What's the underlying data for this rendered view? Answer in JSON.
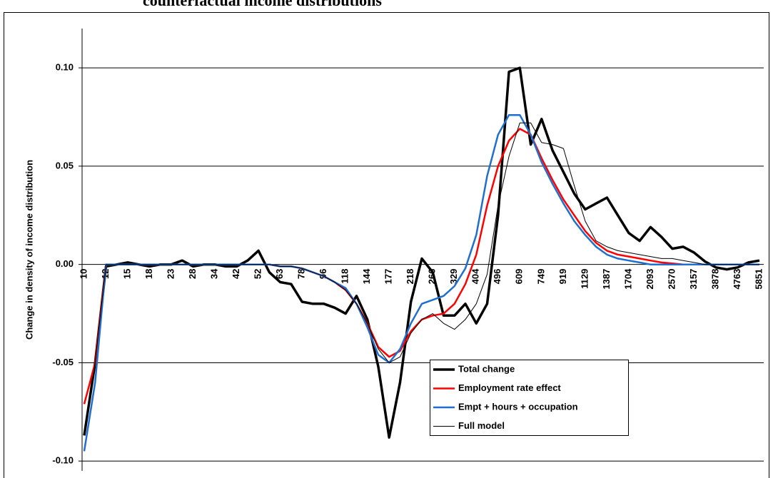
{
  "chart_data": {
    "type": "line",
    "title": "counterfactual income distributions",
    "y_label": "Change in density of income distribution",
    "categories": [
      "10",
      null,
      "12",
      null,
      "15",
      null,
      "18",
      null,
      "23",
      null,
      "28",
      null,
      "34",
      null,
      "42",
      null,
      "52",
      null,
      "63",
      null,
      "78",
      null,
      "96",
      null,
      "118",
      null,
      "144",
      null,
      "177",
      null,
      "218",
      null,
      "266",
      null,
      "329",
      null,
      "404",
      null,
      "496",
      null,
      "609",
      null,
      "749",
      null,
      "919",
      null,
      "1129",
      null,
      "1387",
      null,
      "1704",
      null,
      "2093",
      null,
      "2570",
      null,
      "3157",
      null,
      "3878",
      null,
      "4763",
      null,
      "5851"
    ],
    "series": [
      {
        "name": "Total change",
        "color": "#000000",
        "values": [
          -0.087,
          -0.05,
          -0.001,
          0,
          0.001,
          0,
          -0.001,
          0,
          0,
          0.002,
          -0.001,
          0,
          0,
          -0.001,
          -0.001,
          0.002,
          0.007,
          -0.004,
          -0.009,
          -0.01,
          -0.019,
          -0.02,
          -0.02,
          -0.022,
          -0.025,
          -0.016,
          -0.028,
          -0.052,
          -0.088,
          -0.06,
          -0.019,
          0.003,
          -0.004,
          -0.026,
          -0.026,
          -0.02,
          -0.03,
          -0.02,
          0.025,
          0.098,
          0.1,
          0.061,
          0.074,
          0.058,
          0.047,
          0.036,
          0.028,
          0.031,
          0.034,
          0.025,
          0.016,
          0.012,
          0.019,
          0.014,
          0.008,
          0.009,
          0.006,
          0.0015,
          -0.0015,
          -0.0025,
          -0.0015,
          0.001,
          0.002
        ]
      },
      {
        "name": "Employment rate effect",
        "color": "#ff0000",
        "values": [
          -0.071,
          -0.05,
          0,
          0,
          0,
          0,
          0,
          0,
          0,
          0,
          0,
          0,
          0,
          0,
          0,
          0,
          0,
          0,
          -0.001,
          -0.001,
          -0.002,
          -0.004,
          -0.006,
          -0.009,
          -0.013,
          -0.02,
          -0.03,
          -0.042,
          -0.047,
          -0.044,
          -0.034,
          -0.028,
          -0.026,
          -0.025,
          -0.02,
          -0.01,
          0.005,
          0.03,
          0.05,
          0.063,
          0.069,
          0.066,
          0.054,
          0.043,
          0.033,
          0.025,
          0.017,
          0.011,
          0.007,
          0.005,
          0.004,
          0.003,
          0.002,
          0.001,
          0.0005,
          0,
          0,
          0,
          0,
          0,
          0,
          0,
          0
        ]
      },
      {
        "name": "Empt + hours + occupation",
        "color": "#1f6fd0",
        "values": [
          -0.095,
          -0.06,
          0,
          0,
          0,
          0,
          0,
          0,
          0,
          0,
          0,
          0,
          0,
          0,
          0,
          0,
          0,
          0,
          -0.001,
          -0.001,
          -0.002,
          -0.004,
          -0.006,
          -0.009,
          -0.012,
          -0.02,
          -0.032,
          -0.046,
          -0.05,
          -0.043,
          -0.03,
          -0.02,
          -0.018,
          -0.016,
          -0.011,
          -0.002,
          0.015,
          0.045,
          0.066,
          0.076,
          0.076,
          0.066,
          0.052,
          0.041,
          0.031,
          0.022,
          0.015,
          0.009,
          0.005,
          0.003,
          0.002,
          0.001,
          0,
          0,
          0,
          0,
          0,
          0,
          0,
          0,
          0,
          0,
          0
        ]
      },
      {
        "name": "Full model",
        "color": "#000000",
        "values": [
          -0.087,
          -0.05,
          0,
          0,
          0,
          0,
          0,
          0,
          0,
          0,
          0,
          0,
          0,
          0,
          0,
          0,
          0,
          0,
          -0.001,
          -0.001,
          -0.002,
          -0.004,
          -0.006,
          -0.009,
          -0.013,
          -0.02,
          -0.03,
          -0.043,
          -0.05,
          -0.047,
          -0.035,
          -0.028,
          -0.025,
          -0.03,
          -0.033,
          -0.028,
          -0.02,
          -0.005,
          0.03,
          0.055,
          0.072,
          0.072,
          0.062,
          0.061,
          0.059,
          0.04,
          0.022,
          0.012,
          0.009,
          0.007,
          0.006,
          0.005,
          0.004,
          0.003,
          0.003,
          0.002,
          0.001,
          0,
          0,
          0,
          0,
          0,
          0
        ]
      }
    ],
    "ylim": [
      -0.105,
      0.12
    ],
    "yticks": [
      {
        "value": -0.1,
        "label": "-0.10"
      },
      {
        "value": -0.05,
        "label": "-0.05"
      },
      {
        "value": 0,
        "label": "0.00"
      },
      {
        "value": 0.05,
        "label": "0.05"
      },
      {
        "value": 0.1,
        "label": "0.10"
      }
    ],
    "grid": true
  }
}
